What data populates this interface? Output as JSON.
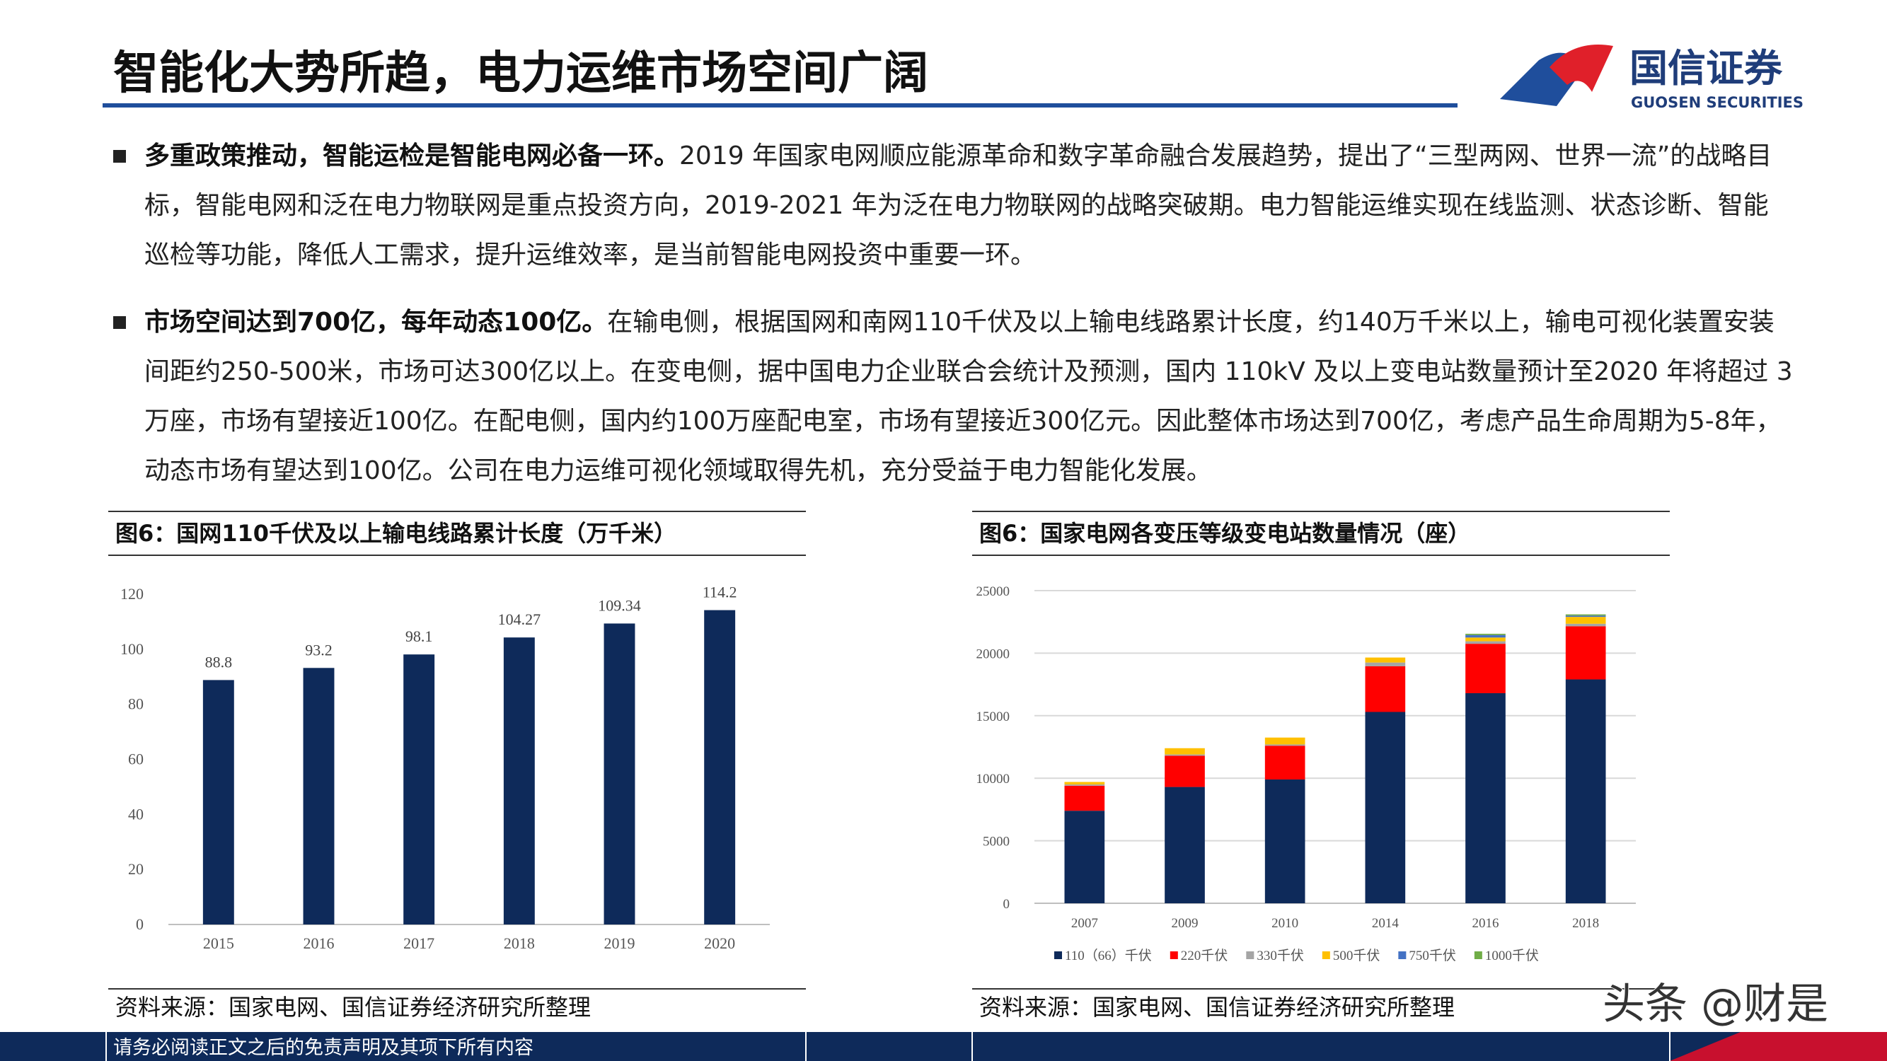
{
  "header": {
    "title": "智能化大势所趋，电力运维市场空间广阔",
    "logo_name": "国信证券",
    "logo_en": "GUOSEN SECURITIES"
  },
  "bullets": [
    {
      "lead": "多重政策推动，智能运检是智能电网必备一环。",
      "text": "2019 年国家电网顺应能源革命和数字革命融合发展趋势，提出了“三型两网、世界一流”的战略目标，智能电网和泛在电力物联网是重点投资方向，2019-2021 年为泛在电力物联网的战略突破期。电力智能运维实现在线监测、状态诊断、智能巡检等功能，降低人工需求，提升运维效率，是当前智能电网投资中重要一环。"
    },
    {
      "lead": "市场空间达到700亿，每年动态100亿。",
      "text": "在输电侧，根据国网和南网110千伏及以上输电线路累计长度，约140万千米以上，输电可视化装置安装间距约250-500米，市场可达300亿以上。在变电侧，据中国电力企业联合会统计及预测，国内 110kV 及以上变电站数量预计至2020 年将超过 3 万座，市场有望接近100亿。在配电侧，国内约100万座配电室，市场有望接近300亿元。因此整体市场达到700亿，考虑产品生命周期为5-8年，动态市场有望达到100亿。公司在电力运维可视化领域取得先机，充分受益于电力智能化发展。"
    }
  ],
  "chart_data": [
    {
      "type": "bar",
      "title": "图6：国网110千伏及以上输电线路累计长度（万千米）",
      "categories": [
        "2015",
        "2016",
        "2017",
        "2018",
        "2019",
        "2020"
      ],
      "values": [
        88.8,
        93.2,
        98.1,
        104.27,
        109.34,
        114.2
      ],
      "color": "#0e2a5a",
      "ylim": [
        0,
        120
      ],
      "yticks": [
        0,
        20,
        40,
        60,
        80,
        100,
        120
      ],
      "grid": false,
      "source": "资料来源：国家电网、国信证券经济研究所整理"
    },
    {
      "type": "bar",
      "stacked": true,
      "title": "图6：国家电网各变压等级变电站数量情况（座）",
      "categories": [
        "2007",
        "2009",
        "2010",
        "2014",
        "2016",
        "2018"
      ],
      "series": [
        {
          "name": "110（66）千伏",
          "color": "#0e2a5a",
          "values": [
            7400,
            9300,
            9900,
            15300,
            16800,
            17900
          ]
        },
        {
          "name": "220千伏",
          "color": "#ff0000",
          "values": [
            2000,
            2500,
            2700,
            3650,
            3950,
            4250
          ]
        },
        {
          "name": "330千伏",
          "color": "#a5a5a5",
          "values": [
            100,
            100,
            100,
            300,
            200,
            200
          ]
        },
        {
          "name": "500千伏",
          "color": "#ffc000",
          "values": [
            200,
            500,
            550,
            400,
            300,
            550
          ]
        },
        {
          "name": "750千伏",
          "color": "#4472c4",
          "values": [
            0,
            0,
            0,
            0,
            200,
            100
          ]
        },
        {
          "name": "1000千伏",
          "color": "#70ad47",
          "values": [
            0,
            0,
            0,
            0,
            100,
            100
          ]
        }
      ],
      "ylim": [
        0,
        25000
      ],
      "yticks": [
        0,
        5000,
        10000,
        15000,
        20000,
        25000
      ],
      "grid": true,
      "legend": "bottom",
      "source": "资料来源：国家电网、国信证券经济研究所整理"
    }
  ],
  "footer": "请务必阅读正文之后的免责声明及其项下所有内容",
  "watermark": "头条 @财是"
}
